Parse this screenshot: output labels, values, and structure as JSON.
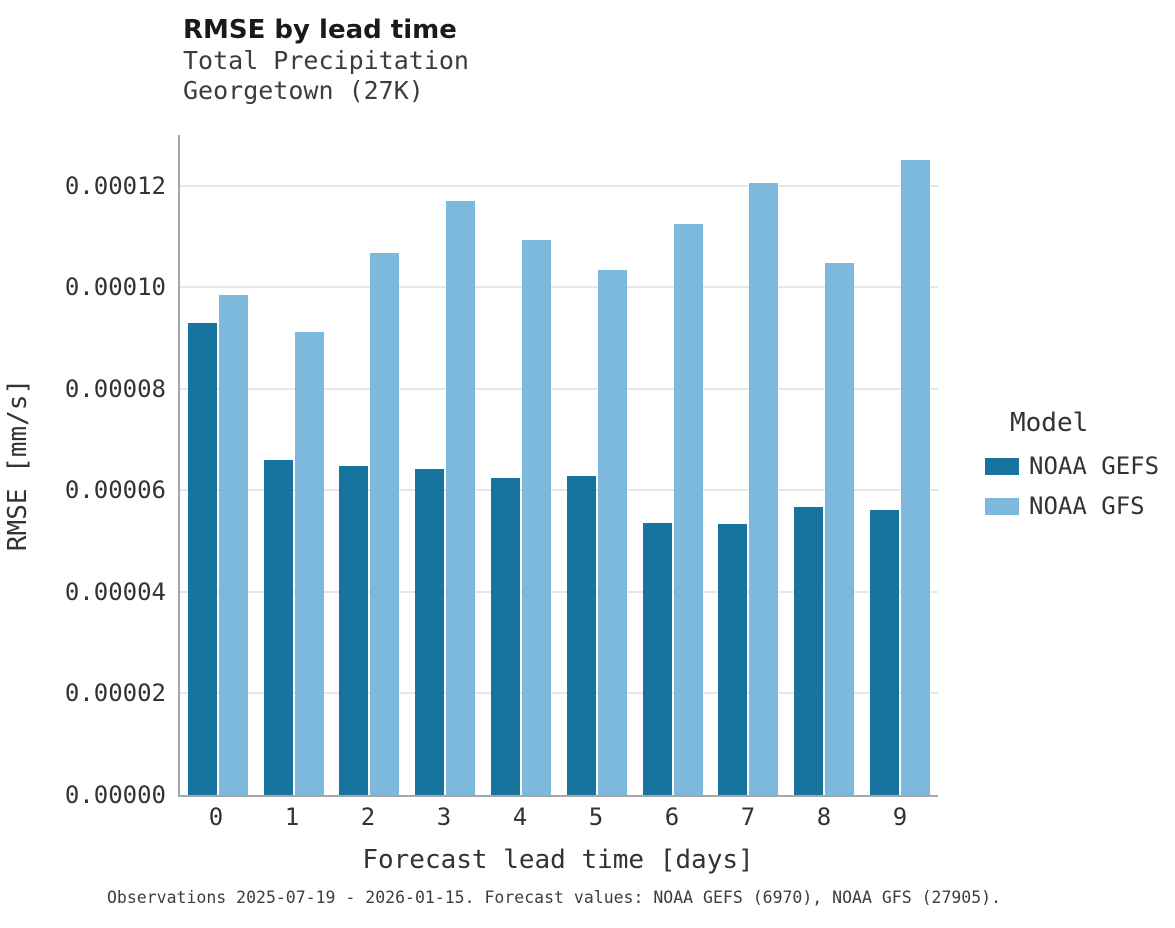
{
  "title": "RMSE by lead time",
  "subtitle_line1": "Total Precipitation",
  "subtitle_line2": "Georgetown (27K)",
  "caption": "Observations 2025-07-19 - 2026-01-15. Forecast values: NOAA GEFS (6970), NOAA GFS (27905).",
  "legend": {
    "title": "Model",
    "entries": [
      {
        "label": "NOAA GEFS",
        "color": "#17749f"
      },
      {
        "label": "NOAA GFS",
        "color": "#7cb9dc"
      }
    ]
  },
  "colors": {
    "noaa_gefs": "#17749f",
    "noaa_gfs": "#7cb9dc",
    "gridline": "#e7e7e7",
    "spine": "#a6a6a6"
  },
  "chart_data": {
    "type": "bar",
    "title": "RMSE by lead time",
    "subtitle": "Total Precipitation — Georgetown (27K)",
    "xlabel": "Forecast lead time [days]",
    "ylabel": "RMSE [mm/s]",
    "categories": [
      "0",
      "1",
      "2",
      "3",
      "4",
      "5",
      "6",
      "7",
      "8",
      "9"
    ],
    "series": [
      {
        "name": "NOAA GEFS",
        "color": "#17749f",
        "values": [
          9.3e-05,
          6.6e-05,
          6.48e-05,
          6.43e-05,
          6.24e-05,
          6.28e-05,
          5.35e-05,
          5.33e-05,
          5.68e-05,
          5.62e-05
        ]
      },
      {
        "name": "NOAA GFS",
        "color": "#7cb9dc",
        "values": [
          9.85e-05,
          9.12e-05,
          0.0001068,
          0.000117,
          0.0001093,
          0.0001035,
          0.0001125,
          0.0001205,
          0.0001048,
          0.000125
        ]
      }
    ],
    "ylim": [
      0,
      0.00013
    ],
    "yticks": [
      0,
      2e-05,
      4e-05,
      6e-05,
      8e-05,
      0.0001,
      0.00012
    ],
    "ytick_labels": [
      "0.00000",
      "0.00002",
      "0.00004",
      "0.00006",
      "0.00008",
      "0.00010",
      "0.00012"
    ],
    "grid": true,
    "legend_position": "right",
    "legend_title": "Model"
  }
}
